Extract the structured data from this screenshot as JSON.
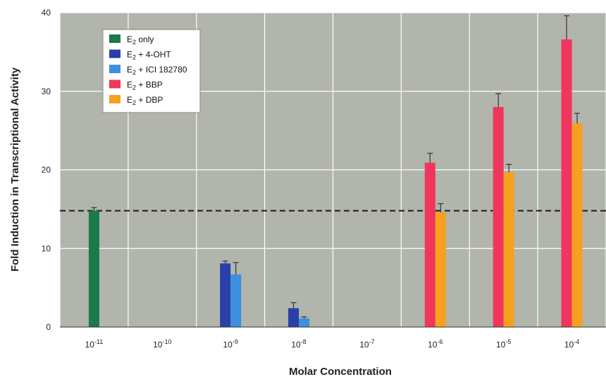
{
  "chart_data": {
    "type": "bar",
    "xlabel": "Molar Concentration",
    "ylabel": "Fold Induction in Transcriptional Activity",
    "ylim": [
      0,
      40
    ],
    "yticks": [
      0,
      10,
      20,
      30,
      40
    ],
    "grid": true,
    "legend_position": "top-left",
    "categories": [
      {
        "base": "10",
        "exp": "-11"
      },
      {
        "base": "10",
        "exp": "-10"
      },
      {
        "base": "10",
        "exp": "-9"
      },
      {
        "base": "10",
        "exp": "-8"
      },
      {
        "base": "10",
        "exp": "-7"
      },
      {
        "base": "10",
        "exp": "-6"
      },
      {
        "base": "10",
        "exp": "-5"
      },
      {
        "base": "10",
        "exp": "-4"
      }
    ],
    "reference_line": {
      "value": 14.8,
      "style": "dashed"
    },
    "series": [
      {
        "name_main": "E",
        "name_sub": "2",
        "name_rest": " only",
        "color": "#1a7a4a",
        "points": [
          {
            "category": 0,
            "value": 14.8,
            "error": 0.4
          }
        ]
      },
      {
        "name_main": "E",
        "name_sub": "2",
        "name_rest": " + 4-OHT",
        "color": "#2a3fa8",
        "points": [
          {
            "category": 2,
            "value": 8.1,
            "error": 0.3
          },
          {
            "category": 3,
            "value": 2.4,
            "error": 0.7
          }
        ]
      },
      {
        "name_main": "E",
        "name_sub": "2",
        "name_rest": " + ICI 182780",
        "color": "#3d8fe0",
        "points": [
          {
            "category": 2,
            "value": 6.7,
            "error": 1.5
          },
          {
            "category": 3,
            "value": 1.1,
            "error": 0.2
          }
        ]
      },
      {
        "name_main": "E",
        "name_sub": "2",
        "name_rest": " + BBP",
        "color": "#f0365c",
        "points": [
          {
            "category": 5,
            "value": 20.9,
            "error": 1.2
          },
          {
            "category": 6,
            "value": 28.0,
            "error": 1.7
          },
          {
            "category": 7,
            "value": 36.6,
            "error": 3.0
          }
        ]
      },
      {
        "name_main": "E",
        "name_sub": "2",
        "name_rest": " + DBP",
        "color": "#f7a020",
        "points": [
          {
            "category": 5,
            "value": 14.6,
            "error": 1.1
          },
          {
            "category": 6,
            "value": 19.7,
            "error": 1.0
          },
          {
            "category": 7,
            "value": 25.9,
            "error": 1.3
          }
        ]
      }
    ]
  }
}
